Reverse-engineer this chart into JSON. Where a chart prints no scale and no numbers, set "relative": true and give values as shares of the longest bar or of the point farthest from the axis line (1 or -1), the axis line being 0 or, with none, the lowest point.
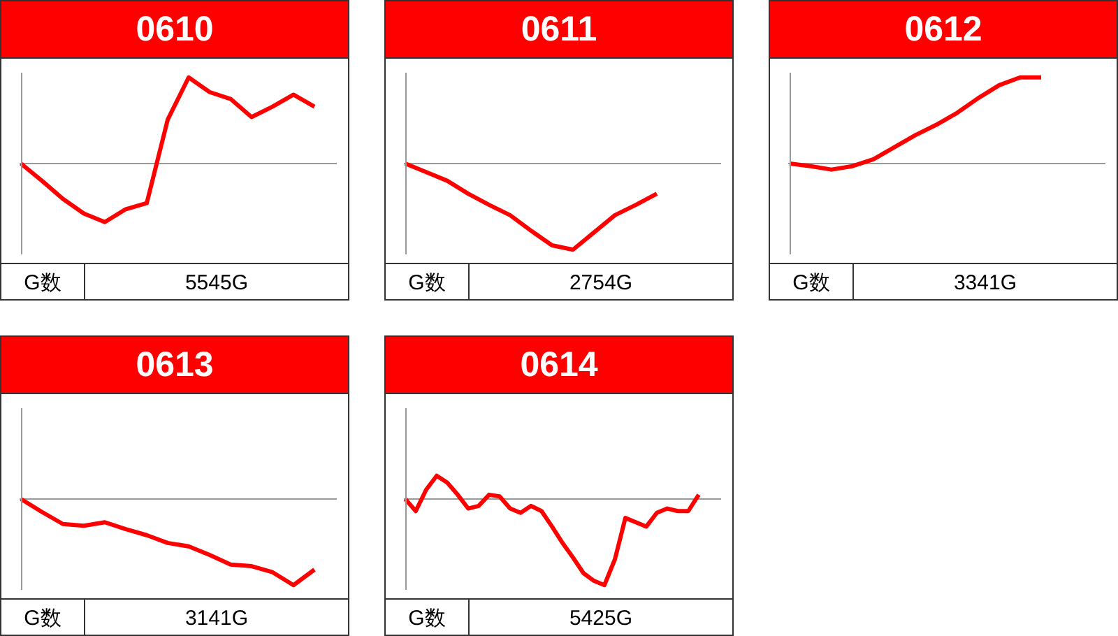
{
  "chart_data": [
    {
      "type": "line",
      "title": "0610",
      "relative": true,
      "categories": [
        null,
        null,
        null,
        null,
        null,
        null,
        null,
        null,
        null,
        null,
        null,
        null,
        null,
        null,
        null,
        null
      ],
      "series": [
        {
          "color": "#ff0000",
          "values": [
            0,
            -0.2,
            -0.41,
            -0.58,
            -0.68,
            -0.53,
            -0.46,
            0.51,
            1,
            0.83,
            0.75,
            0.54,
            0.66,
            0.8,
            0.66,
            null
          ]
        }
      ],
      "annotations": [
        "G数",
        "5545G"
      ]
    },
    {
      "type": "line",
      "title": "0611",
      "relative": true,
      "categories": [
        null,
        null,
        null,
        null,
        null,
        null,
        null,
        null,
        null,
        null,
        null,
        null,
        null,
        null,
        null,
        null
      ],
      "series": [
        {
          "color": "#ff0000",
          "values": [
            0,
            -0.1,
            -0.2,
            -0.35,
            -0.48,
            -0.6,
            -0.78,
            -0.95,
            -1,
            -0.8,
            -0.6,
            -0.48,
            -0.35,
            null,
            null,
            null
          ]
        }
      ],
      "annotations": [
        "G数",
        "2754G"
      ]
    },
    {
      "type": "line",
      "title": "0612",
      "relative": true,
      "categories": [
        null,
        null,
        null,
        null,
        null,
        null,
        null,
        null,
        null,
        null,
        null,
        null,
        null,
        null,
        null,
        null
      ],
      "series": [
        {
          "color": "#ff0000",
          "values": [
            0,
            -0.03,
            -0.07,
            -0.03,
            0.05,
            0.19,
            0.33,
            0.45,
            0.59,
            0.76,
            0.91,
            1,
            1,
            null,
            null,
            null
          ]
        }
      ],
      "annotations": [
        "G数",
        "3341G"
      ]
    },
    {
      "type": "line",
      "title": "0613",
      "relative": true,
      "categories": [
        null,
        null,
        null,
        null,
        null,
        null,
        null,
        null,
        null,
        null,
        null,
        null,
        null,
        null,
        null,
        null
      ],
      "series": [
        {
          "color": "#ff0000",
          "values": [
            0,
            -0.15,
            -0.29,
            -0.31,
            -0.27,
            -0.35,
            -0.42,
            -0.51,
            -0.55,
            -0.65,
            -0.76,
            -0.78,
            -0.85,
            -1,
            -0.82,
            null
          ]
        }
      ],
      "annotations": [
        "G数",
        "3141G"
      ]
    },
    {
      "type": "line",
      "title": "0614",
      "relative": true,
      "categories": [
        null,
        null,
        null,
        null,
        null,
        null,
        null,
        null,
        null,
        null,
        null,
        null,
        null,
        null,
        null,
        null,
        null,
        null,
        null,
        null,
        null,
        null,
        null,
        null,
        null,
        null,
        null,
        null,
        null,
        null,
        null
      ],
      "series": [
        {
          "color": "#ff0000",
          "values": [
            0,
            -0.14,
            0.11,
            0.27,
            0.19,
            0.05,
            -0.11,
            -0.08,
            0.05,
            0.03,
            -0.11,
            -0.16,
            -0.08,
            -0.14,
            -0.32,
            -0.51,
            -0.68,
            -0.86,
            -0.95,
            -1,
            -0.7,
            -0.22,
            -0.27,
            -0.32,
            -0.16,
            -0.11,
            -0.14,
            -0.14,
            0.05,
            null,
            null
          ]
        }
      ],
      "annotations": [
        "G数",
        "5425G"
      ]
    }
  ]
}
